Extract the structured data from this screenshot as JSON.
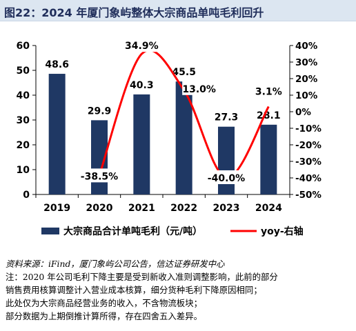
{
  "title": "图22：2024 年厦门象屿整体大宗商品单吨毛利回升",
  "chart_data": {
    "type": "bar+line",
    "categories": [
      "2019",
      "2020",
      "2021",
      "2022",
      "2023",
      "2024"
    ],
    "series": [
      {
        "name": "大宗商品合计单吨毛利（元/吨）",
        "type": "bar",
        "axis": "left",
        "values": [
          48.6,
          29.9,
          40.3,
          45.5,
          27.3,
          28.1
        ],
        "labels": [
          "48.6",
          "29.9",
          "40.3",
          "45.5",
          "27.3",
          "28.1"
        ],
        "color": "#1f3864"
      },
      {
        "name": "yoy-右轴",
        "type": "line",
        "axis": "right",
        "values": [
          null,
          -38.5,
          34.9,
          13.0,
          -40.0,
          3.1
        ],
        "labels": [
          "",
          "-38.5%",
          "34.9%",
          "13.0%",
          "-40.0%",
          "3.1%"
        ],
        "color": "#ff0000"
      }
    ],
    "left_axis": {
      "ylim": [
        0,
        60
      ],
      "ticks": [
        "0",
        "10",
        "20",
        "30",
        "40",
        "50",
        "60"
      ]
    },
    "right_axis": {
      "ylim": [
        -50,
        40
      ],
      "ticks": [
        "-50%",
        "-40%",
        "-30%",
        "-20%",
        "-10%",
        "0%",
        "10%",
        "20%",
        "30%",
        "40%"
      ]
    },
    "grid": false,
    "legend_position": "bottom"
  },
  "notes": [
    "资料来源：iFind，厦门象屿公司公告，信达证券研发中心",
    "注：2020 年公司毛利下降主要是受到新收入准则调整影响，此前的部分",
    "销售费用核算调整计入营业成本核算，细分货种毛利下降原因相同；",
    "此处仅为大宗商品经营业务的收入，不含物流板块；",
    "部分数据为上期倒推计算所得，存在四舍五入差异。"
  ]
}
